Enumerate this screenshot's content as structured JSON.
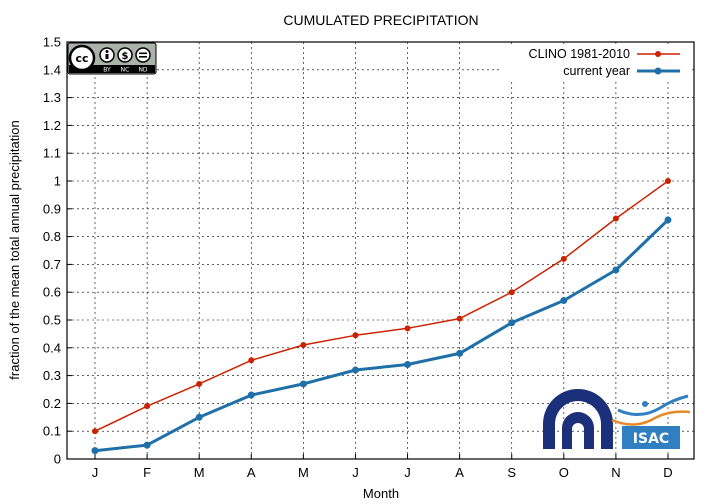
{
  "chart_data": {
    "type": "line",
    "title": "CUMULATED PRECIPITATION",
    "xlabel": "Month",
    "ylabel": "fraction of the mean total annual precipitation",
    "categories": [
      "J",
      "F",
      "M",
      "A",
      "M",
      "J",
      "J",
      "A",
      "S",
      "O",
      "N",
      "D"
    ],
    "ylim": [
      0,
      1.5
    ],
    "yticks": [
      "0",
      "0.1",
      "0.2",
      "0.3",
      "0.4",
      "0.5",
      "0.6",
      "0.7",
      "0.8",
      "0.9",
      "1",
      "1.1",
      "1.2",
      "1.3",
      "1.4",
      "1.5"
    ],
    "grid": true,
    "legend_position": "top-right",
    "series": [
      {
        "name": "CLINO 1981-2010",
        "color": "#cc2200",
        "values": [
          0.1,
          0.19,
          0.27,
          0.355,
          0.41,
          0.445,
          0.47,
          0.505,
          0.6,
          0.72,
          0.865,
          1.0
        ]
      },
      {
        "name": "current year",
        "color": "#1f6fa8",
        "values": [
          0.03,
          0.05,
          0.15,
          0.23,
          0.27,
          0.32,
          0.34,
          0.38,
          0.49,
          0.57,
          0.68,
          0.86
        ]
      }
    ]
  },
  "license_badge": {
    "icon": "cc-by-nc-nd-icon",
    "labels": [
      "BY",
      "NC",
      "ND"
    ]
  },
  "logos": {
    "cnr_icon": "cnr-logo-icon",
    "isac_text": "ISAC",
    "isac_icon": "isac-logo-icon",
    "cnr_color": "#1b2f7a",
    "isac_color": "#2f7fc1"
  }
}
